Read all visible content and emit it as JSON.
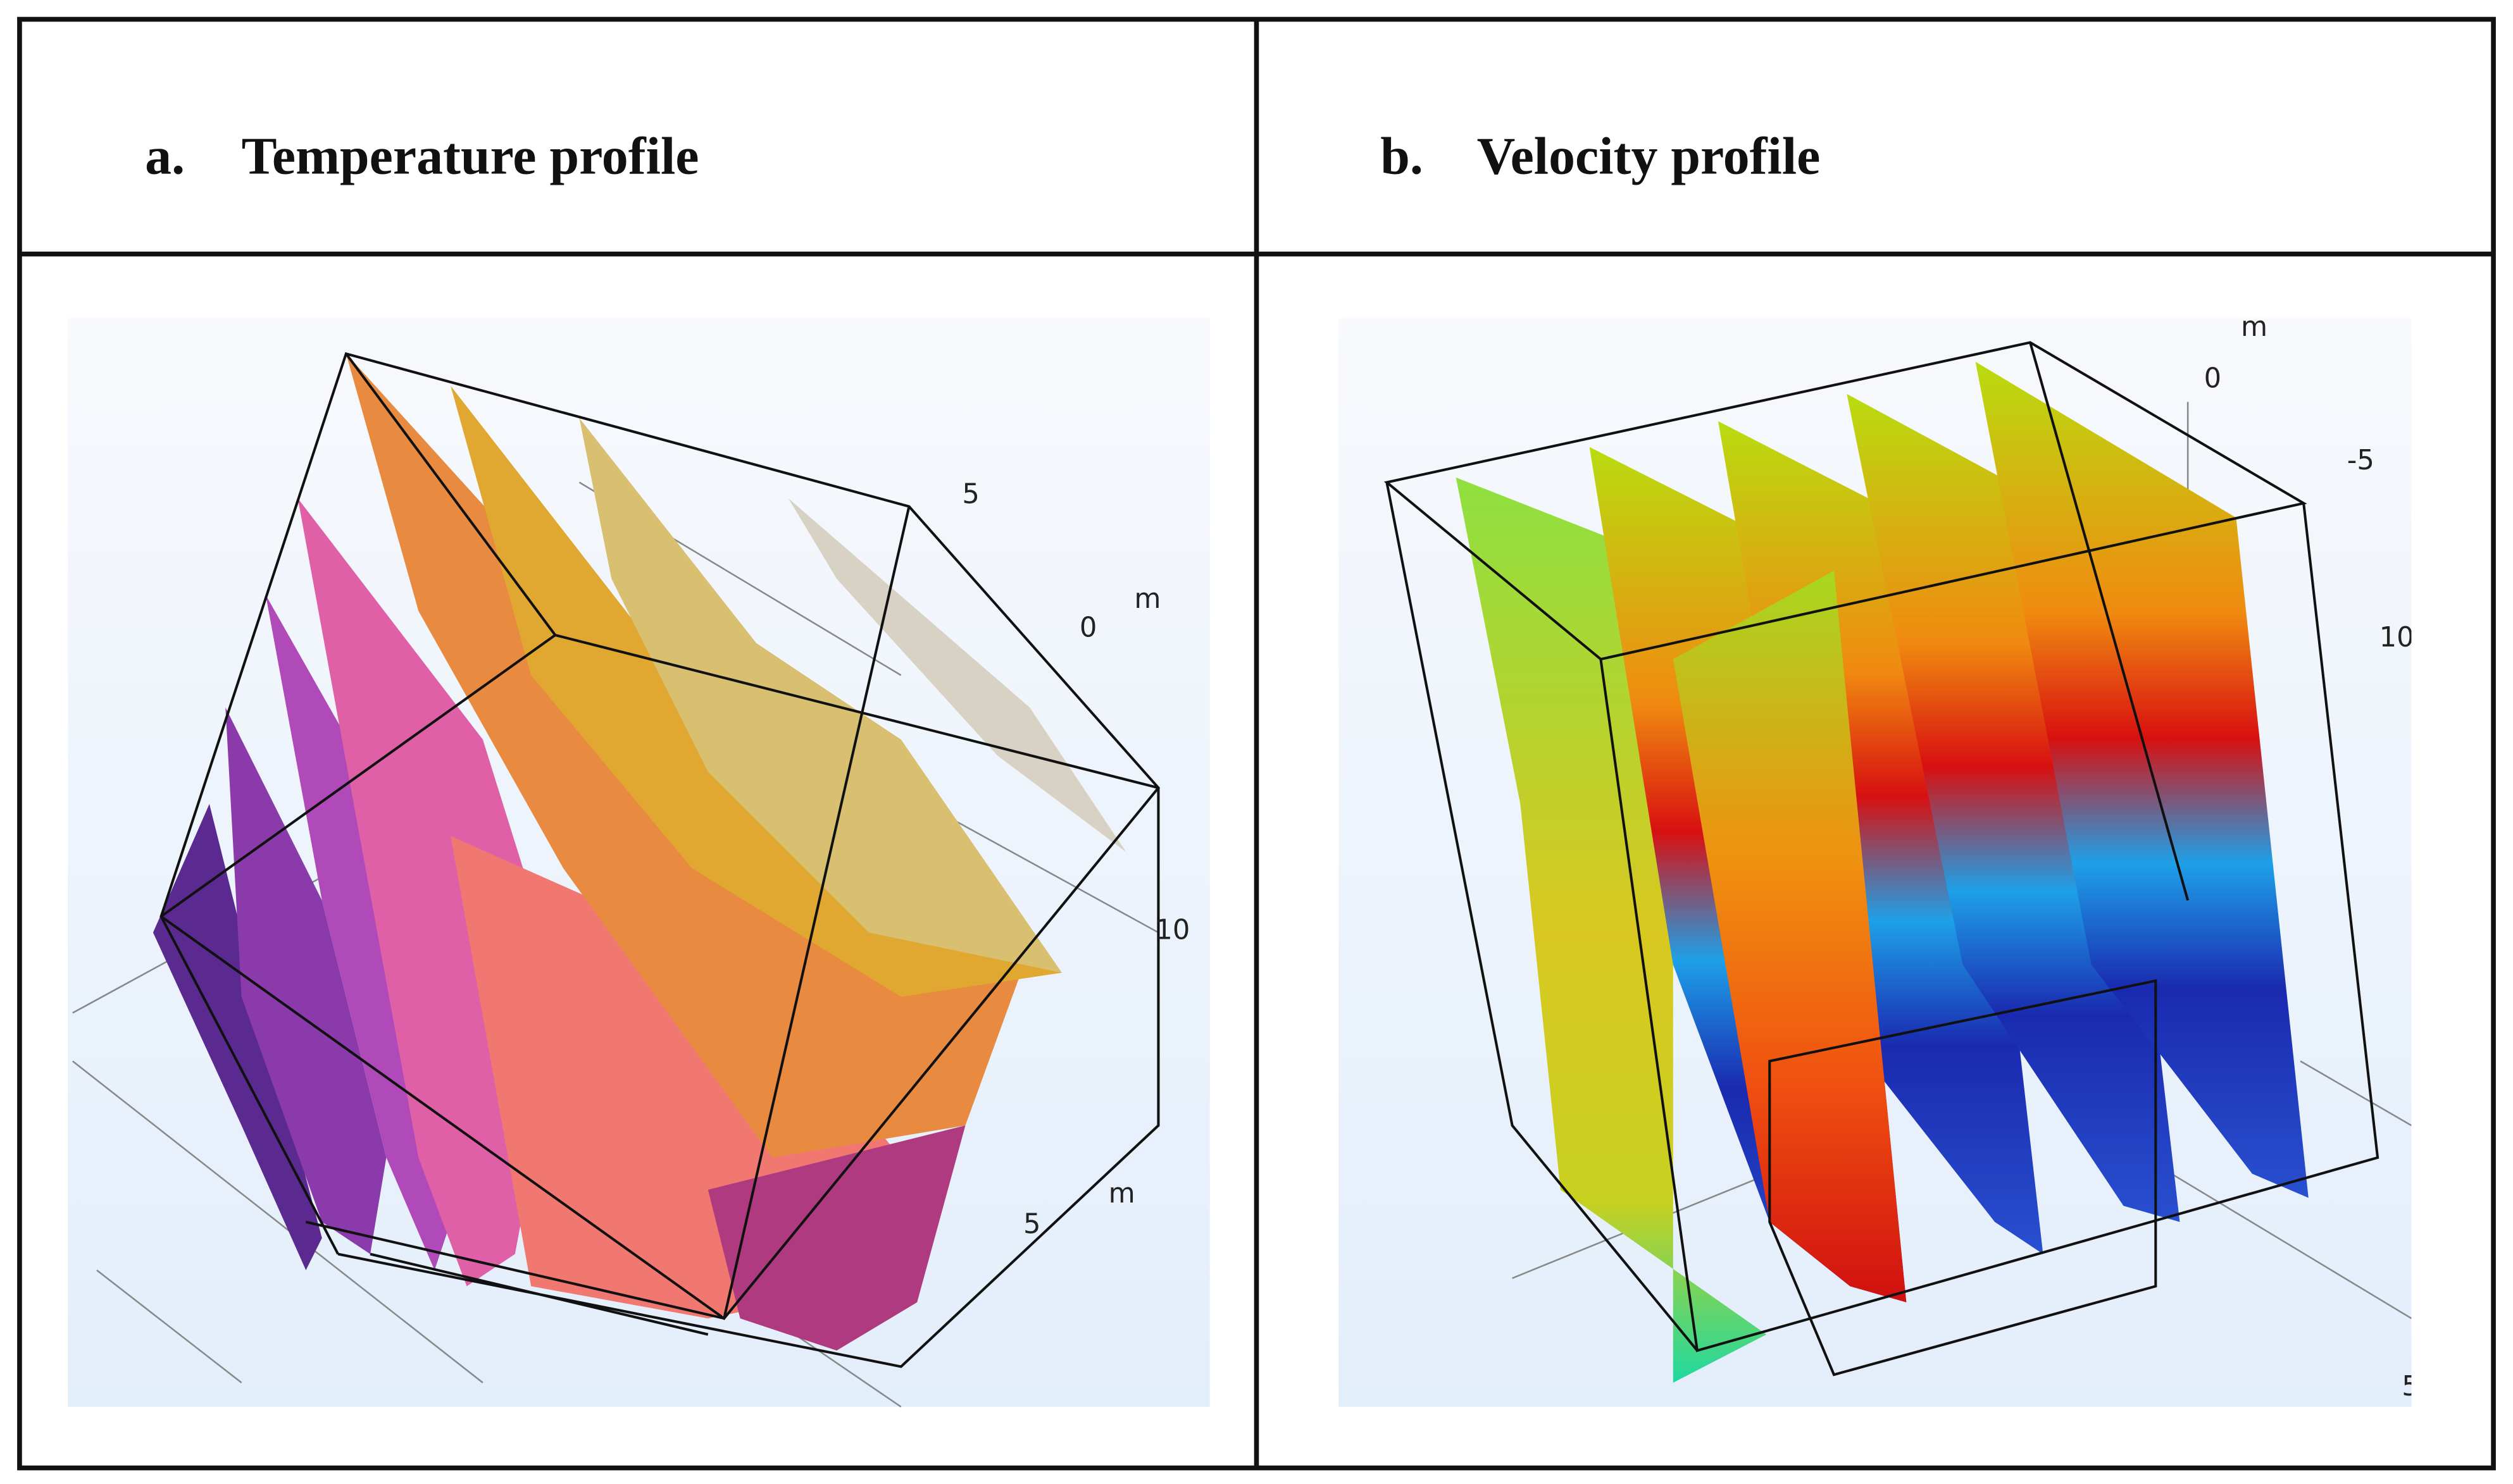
{
  "panels": [
    {
      "label": "a.",
      "title": "Temperature profile",
      "axis_labels": [
        "5",
        "m",
        "0",
        "10",
        "m",
        "5"
      ]
    },
    {
      "label": "b.",
      "title": "Velocity profile",
      "axis_labels": [
        "m",
        "0",
        "-5",
        "10",
        "5"
      ]
    }
  ]
}
